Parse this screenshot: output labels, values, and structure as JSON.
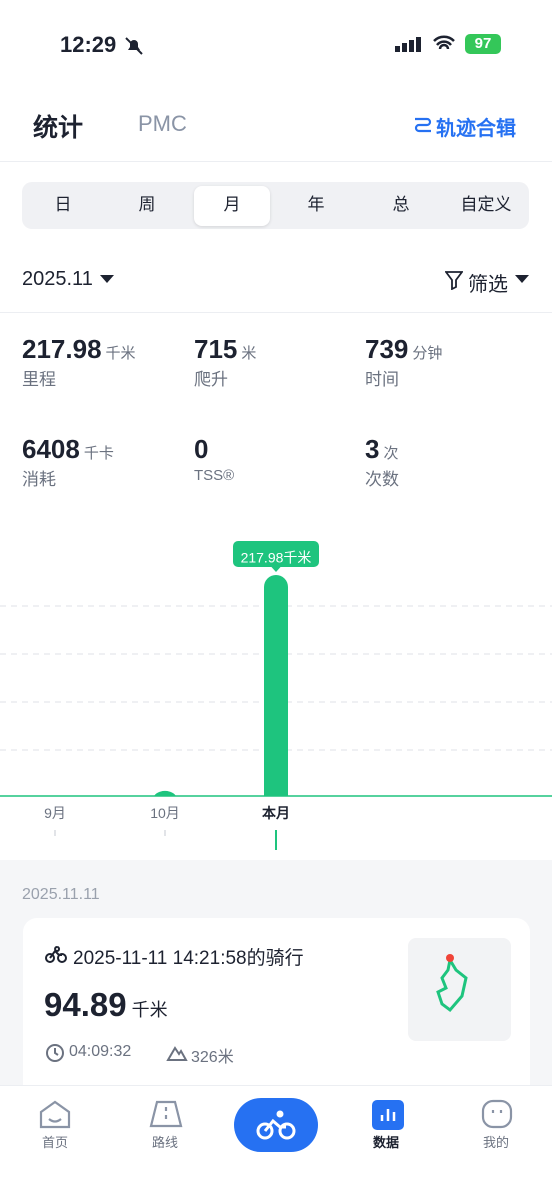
{
  "status_bar": {
    "time": "12:29",
    "battery": "97"
  },
  "header": {
    "tabs": [
      "统计",
      "PMC"
    ],
    "action": "轨迹合辑"
  },
  "periods": [
    "日",
    "周",
    "月",
    "年",
    "总",
    "自定义"
  ],
  "filter": {
    "date": "2025.11",
    "label": "筛选"
  },
  "stats": [
    {
      "value": "217.98",
      "unit": "千米",
      "label": "里程"
    },
    {
      "value": "715",
      "unit": "米",
      "label": "爬升"
    },
    {
      "value": "739",
      "unit": "分钟",
      "label": "时间"
    },
    {
      "value": "6408",
      "unit": "千卡",
      "label": "消耗"
    },
    {
      "value": "0",
      "unit": null,
      "label": "TSS®"
    },
    {
      "value": "3",
      "unit": "次",
      "label": "次数"
    }
  ],
  "chart": {
    "type": "bar",
    "categories": [
      "9月",
      "10月",
      "本月"
    ],
    "values": [
      0,
      5,
      217.98
    ],
    "value_labels": [
      null,
      null,
      "217.98千米"
    ],
    "color": "#1ec47e"
  },
  "activity": {
    "date": "2025.11.11",
    "title": "2025-11-11 14:21:58的骑行",
    "distance": "94.89",
    "distance_unit": "千米",
    "duration": "04:09:32",
    "elevation": "326米"
  },
  "tab_bar": [
    "首页",
    "路线",
    "数据",
    "我的"
  ]
}
